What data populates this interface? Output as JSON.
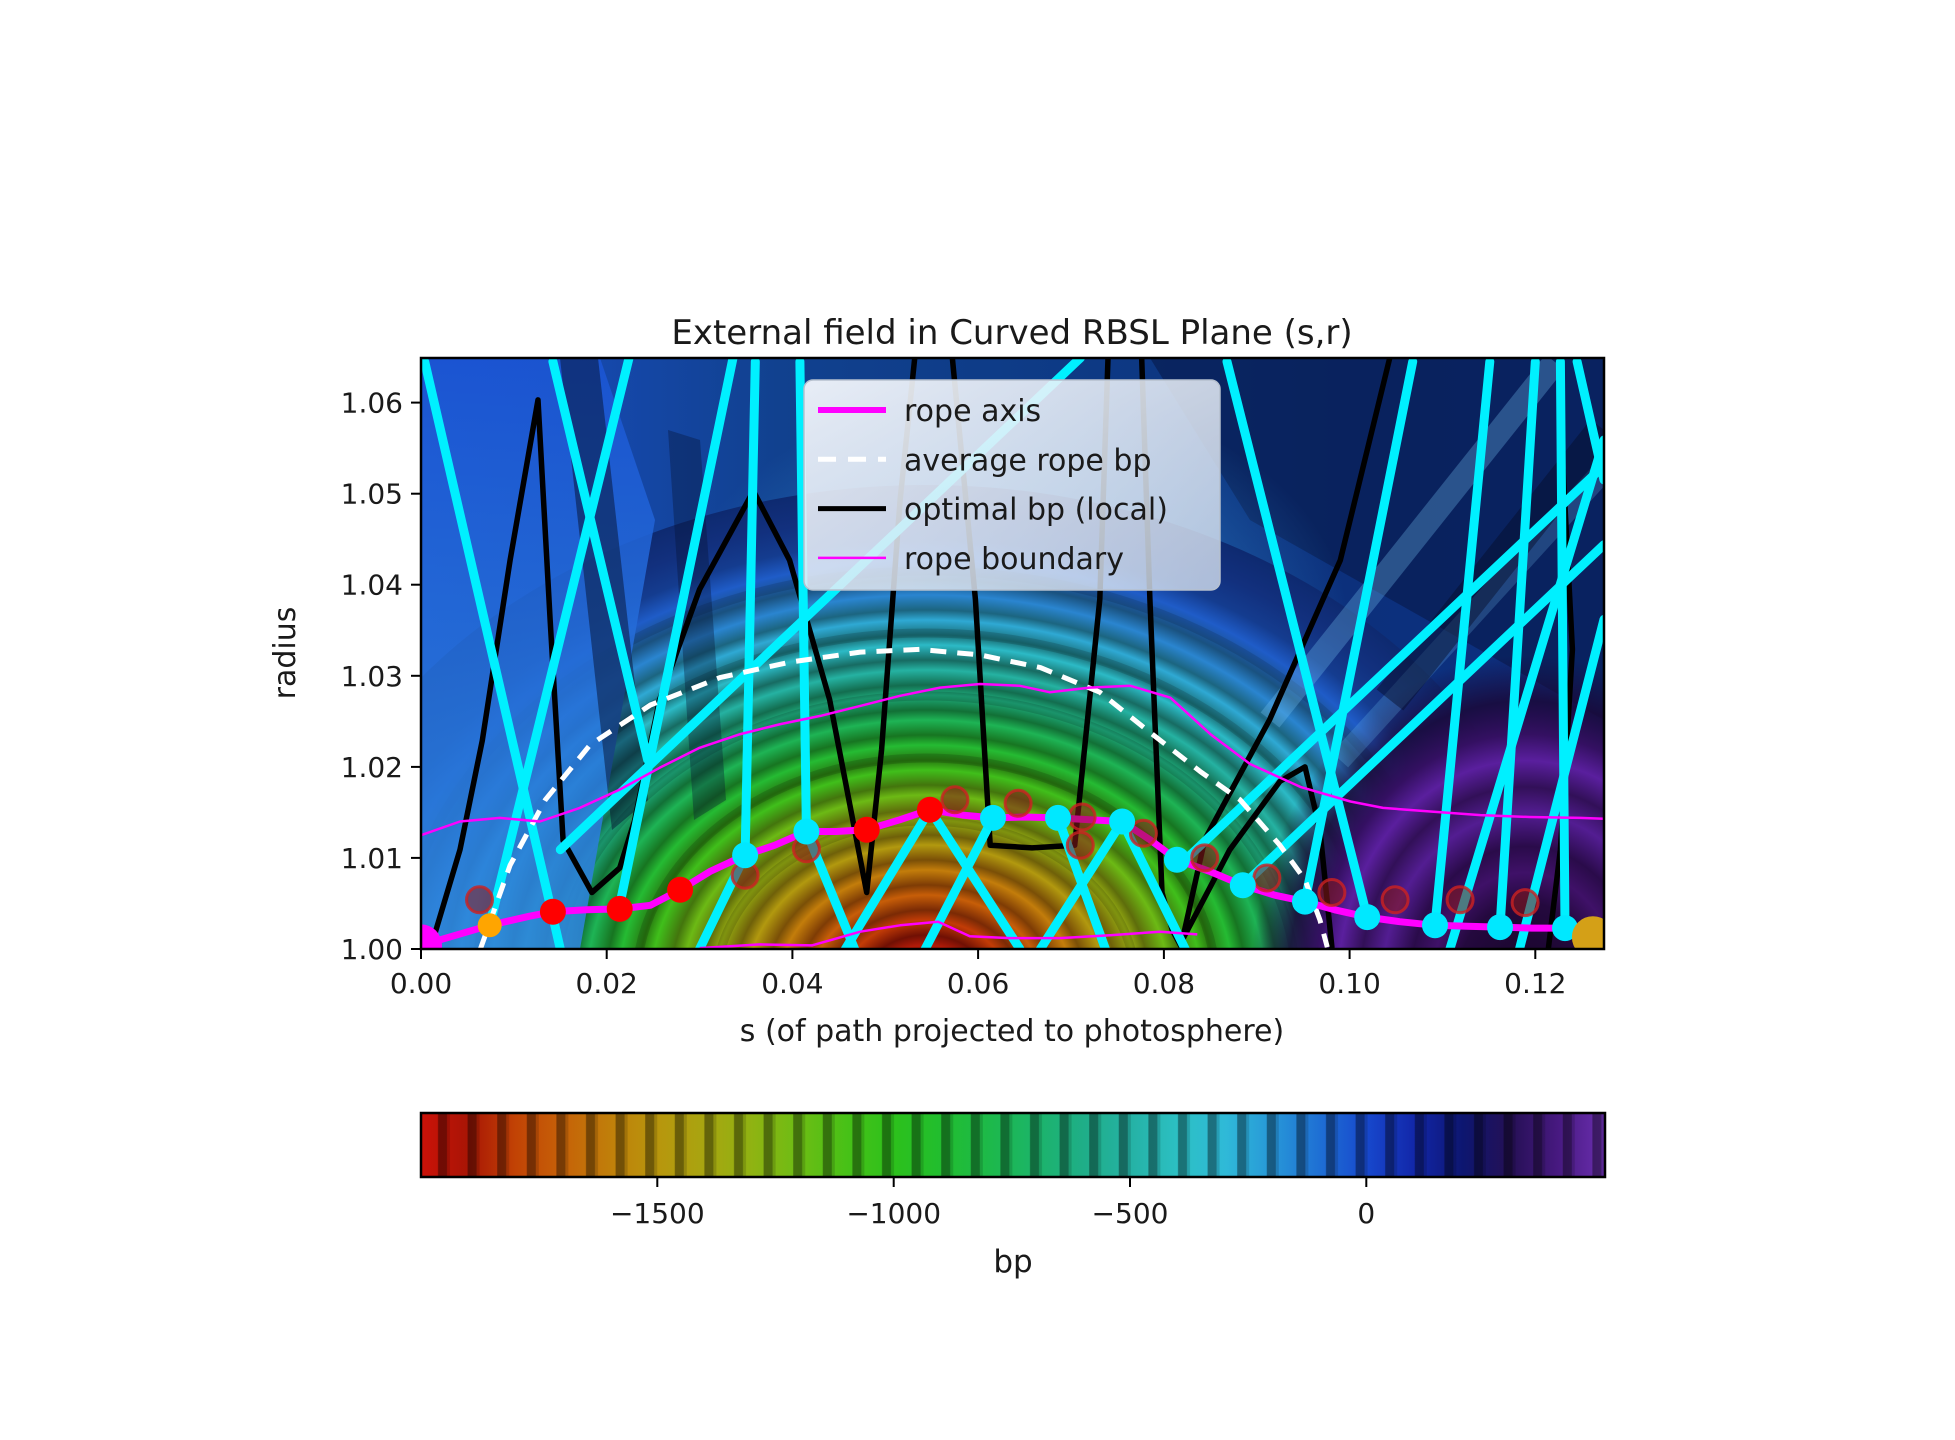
{
  "figure": {
    "background": "#ffffff"
  },
  "chart_data": {
    "type": "heatmap",
    "title": "External field in Curved RBSL Plane (s,r)",
    "xlabel": "s (of path projected to photosphere)",
    "ylabel": "radius",
    "axes": {
      "xlim": [
        0.0,
        0.1274
      ],
      "ylim": [
        1.0,
        1.0649
      ],
      "x_ticks": [
        {
          "value": 0.0,
          "label": "0.00"
        },
        {
          "value": 0.02,
          "label": "0.02"
        },
        {
          "value": 0.04,
          "label": "0.04"
        },
        {
          "value": 0.06,
          "label": "0.06"
        },
        {
          "value": 0.08,
          "label": "0.08"
        },
        {
          "value": 0.1,
          "label": "0.10"
        },
        {
          "value": 0.12,
          "label": "0.12"
        }
      ],
      "y_ticks": [
        {
          "value": 1.0,
          "label": "1.00"
        },
        {
          "value": 1.01,
          "label": "1.01"
        },
        {
          "value": 1.02,
          "label": "1.02"
        },
        {
          "value": 1.03,
          "label": "1.03"
        },
        {
          "value": 1.04,
          "label": "1.04"
        },
        {
          "value": 1.05,
          "label": "1.05"
        },
        {
          "value": 1.06,
          "label": "1.06"
        }
      ],
      "grid": false
    },
    "colorbar": {
      "label": "bp",
      "vmin": -2000,
      "vmax": 505,
      "ticks": [
        {
          "value": -1500,
          "label": "−1500"
        },
        {
          "value": -1000,
          "label": "−1000"
        },
        {
          "value": -500,
          "label": "−500"
        },
        {
          "value": 0,
          "label": "0"
        }
      ]
    },
    "legend": {
      "position": "upper center-left inside axes",
      "entries": [
        {
          "label": "rope axis",
          "color": "#ff00ff",
          "width": 6,
          "dash": ""
        },
        {
          "label": "average rope bp",
          "color": "#ffffff",
          "width": 5,
          "dash": "18 12"
        },
        {
          "label": "optimal bp (local)",
          "color": "#000000",
          "width": 5,
          "dash": ""
        },
        {
          "label": "rope boundary",
          "color": "#ff00ff",
          "width": 2.5,
          "dash": ""
        }
      ]
    },
    "styles": {
      "field_line_color": "#00f0ff",
      "rope_axis_color": "#ff00ff",
      "optimal_color": "#000000",
      "average_color": "#ffffff",
      "boundary_color": "#ff00ff",
      "faded_fill": "#8b1a1a",
      "faded_ring": "#cc2222"
    },
    "rope_axis": {
      "points": [
        [
          0.0,
          1.0004
        ],
        [
          0.0074,
          1.0026
        ],
        [
          0.0117,
          1.0036
        ],
        [
          0.0142,
          1.0041
        ],
        [
          0.0178,
          1.0043
        ],
        [
          0.0214,
          1.0044
        ],
        [
          0.0247,
          1.0048
        ],
        [
          0.0279,
          1.0065
        ],
        [
          0.0311,
          1.0085
        ],
        [
          0.0349,
          1.0103
        ],
        [
          0.0381,
          1.0114
        ],
        [
          0.0415,
          1.0129
        ],
        [
          0.0447,
          1.0129
        ],
        [
          0.048,
          1.0131
        ],
        [
          0.0516,
          1.0142
        ],
        [
          0.0548,
          1.0153
        ],
        [
          0.0583,
          1.0147
        ],
        [
          0.0616,
          1.0144
        ],
        [
          0.065,
          1.0145
        ],
        [
          0.0686,
          1.0144
        ],
        [
          0.072,
          1.0142
        ],
        [
          0.0755,
          1.014
        ],
        [
          0.0785,
          1.012
        ],
        [
          0.0814,
          1.0098
        ],
        [
          0.085,
          1.0085
        ],
        [
          0.0885,
          1.007
        ],
        [
          0.092,
          1.0059
        ],
        [
          0.0952,
          1.0052
        ],
        [
          0.0984,
          1.0043
        ],
        [
          0.1019,
          1.0035
        ],
        [
          0.1054,
          1.003
        ],
        [
          0.1092,
          1.0026
        ],
        [
          0.1126,
          1.0025
        ],
        [
          0.1162,
          1.0024
        ],
        [
          0.1196,
          1.0023
        ],
        [
          0.1232,
          1.0023
        ],
        [
          0.1262,
          1.0013
        ],
        [
          0.1274,
          1.0009
        ]
      ]
    },
    "rope_axis_markers": [
      {
        "s": 0.0,
        "r": 1.0004,
        "color": "#ff00ff",
        "size": 21
      },
      {
        "s": 0.0074,
        "r": 1.0026,
        "color": "#ffa500",
        "size": 12
      },
      {
        "s": 0.0142,
        "r": 1.0041,
        "color": "#ff0000",
        "size": 13
      },
      {
        "s": 0.0214,
        "r": 1.0044,
        "color": "#ff0000",
        "size": 13
      },
      {
        "s": 0.0279,
        "r": 1.0065,
        "color": "#ff0000",
        "size": 13
      },
      {
        "s": 0.0349,
        "r": 1.0103,
        "color": "#00e8ff",
        "size": 13
      },
      {
        "s": 0.0415,
        "r": 1.0129,
        "color": "#00e8ff",
        "size": 13
      },
      {
        "s": 0.048,
        "r": 1.0131,
        "color": "#ff0000",
        "size": 13
      },
      {
        "s": 0.0548,
        "r": 1.0153,
        "color": "#ff0000",
        "size": 13
      },
      {
        "s": 0.0616,
        "r": 1.0144,
        "color": "#00e8ff",
        "size": 13
      },
      {
        "s": 0.0686,
        "r": 1.0144,
        "color": "#00e8ff",
        "size": 13
      },
      {
        "s": 0.0755,
        "r": 1.014,
        "color": "#00e8ff",
        "size": 13
      },
      {
        "s": 0.0814,
        "r": 1.0098,
        "color": "#00e8ff",
        "size": 13
      },
      {
        "s": 0.0885,
        "r": 1.007,
        "color": "#00e8ff",
        "size": 13
      },
      {
        "s": 0.0952,
        "r": 1.0052,
        "color": "#00e8ff",
        "size": 13
      },
      {
        "s": 0.1019,
        "r": 1.0035,
        "color": "#00e8ff",
        "size": 13
      },
      {
        "s": 0.1092,
        "r": 1.0026,
        "color": "#00e8ff",
        "size": 13
      },
      {
        "s": 0.1162,
        "r": 1.0024,
        "color": "#00e8ff",
        "size": 13
      },
      {
        "s": 0.1232,
        "r": 1.0023,
        "color": "#00e8ff",
        "size": 13
      },
      {
        "s": 0.1262,
        "r": 1.0013,
        "color": "#d4a017",
        "size": 21
      }
    ],
    "faded_markers": [
      [
        0.0063,
        1.0054
      ],
      [
        0.0349,
        1.0081
      ],
      [
        0.0415,
        1.011
      ],
      [
        0.0575,
        1.0164
      ],
      [
        0.0643,
        1.016
      ],
      [
        0.0712,
        1.0145
      ],
      [
        0.071,
        1.0114
      ],
      [
        0.0778,
        1.0127
      ],
      [
        0.0844,
        1.01
      ],
      [
        0.0911,
        1.0078
      ],
      [
        0.0981,
        1.0062
      ],
      [
        0.1049,
        1.0054
      ],
      [
        0.1119,
        1.0054
      ],
      [
        0.1189,
        1.0051
      ]
    ],
    "field_lines": [
      [
        [
          0.0004,
          1.0645
        ],
        [
          0.015,
          1.0
        ]
      ],
      [
        [
          0.0224,
          1.0649
        ],
        [
          0.0074,
          1.0026
        ]
      ],
      [
        [
          0.0142,
          1.0645
        ],
        [
          0.0244,
          1.0208
        ]
      ],
      [
        [
          0.0336,
          1.0649
        ],
        [
          0.0214,
          1.0048
        ]
      ],
      [
        [
          0.015,
          1.0109
        ],
        [
          0.071,
          1.0649
        ]
      ],
      [
        [
          0.0349,
          1.0103
        ],
        [
          0.03,
          1.0
        ]
      ],
      [
        [
          0.0415,
          1.0129
        ],
        [
          0.0467,
          1.0
        ]
      ],
      [
        [
          0.0548,
          1.0153
        ],
        [
          0.0457,
          1.0
        ]
      ],
      [
        [
          0.0548,
          1.0153
        ],
        [
          0.0645,
          1.0
        ]
      ],
      [
        [
          0.0616,
          1.0144
        ],
        [
          0.0543,
          1.0
        ]
      ],
      [
        [
          0.0686,
          1.0144
        ],
        [
          0.0737,
          1.0
        ]
      ],
      [
        [
          0.0755,
          1.014
        ],
        [
          0.0667,
          1.0
        ]
      ],
      [
        [
          0.0755,
          1.014
        ],
        [
          0.0823,
          1.0
        ]
      ],
      [
        [
          0.036,
          1.0645
        ],
        [
          0.0349,
          1.0103
        ]
      ],
      [
        [
          0.0408,
          1.0645
        ],
        [
          0.0415,
          1.0129
        ]
      ],
      [
        [
          0.0868,
          1.0645
        ],
        [
          0.1019,
          1.0035
        ]
      ],
      [
        [
          0.1068,
          1.0645
        ],
        [
          0.0952,
          1.0052
        ]
      ],
      [
        [
          0.1151,
          1.0645
        ],
        [
          0.1092,
          1.0026
        ]
      ],
      [
        [
          0.12,
          1.0645
        ],
        [
          0.1162,
          1.0024
        ]
      ],
      [
        [
          0.1227,
          1.0645
        ],
        [
          0.1232,
          1.0023
        ]
      ],
      [
        [
          0.1245,
          1.0645
        ],
        [
          0.1274,
          1.0515
        ]
      ],
      [
        [
          0.1274,
          1.0559
        ],
        [
          0.1108,
          1.0
        ]
      ],
      [
        [
          0.1274,
          1.0362
        ],
        [
          0.1183,
          1.0
        ]
      ],
      [
        [
          0.082,
          1.0095
        ],
        [
          0.1274,
          1.0531
        ]
      ],
      [
        [
          0.0885,
          1.007
        ],
        [
          0.1274,
          1.0444
        ]
      ]
    ],
    "optimal_bp_curves": [
      [
        [
          0.001,
          1.0
        ],
        [
          0.0042,
          1.0109
        ],
        [
          0.0066,
          1.0229
        ],
        [
          0.0096,
          1.0427
        ],
        [
          0.0126,
          1.0603
        ],
        [
          0.0139,
          1.0362
        ],
        [
          0.0153,
          1.0119
        ],
        [
          0.0184,
          1.0062
        ],
        [
          0.0214,
          1.0089
        ],
        [
          0.023,
          1.0141
        ],
        [
          0.0257,
          1.0274
        ],
        [
          0.03,
          1.0395
        ],
        [
          0.0358,
          1.0503
        ],
        [
          0.0397,
          1.0427
        ],
        [
          0.044,
          1.0274
        ],
        [
          0.048,
          1.0062
        ],
        [
          0.0496,
          1.0219
        ],
        [
          0.0516,
          1.0493
        ],
        [
          0.0532,
          1.0652
        ]
      ],
      [
        [
          0.0572,
          1.0652
        ],
        [
          0.0597,
          1.0384
        ],
        [
          0.0613,
          1.0114
        ],
        [
          0.0658,
          1.0111
        ],
        [
          0.0704,
          1.0114
        ],
        [
          0.0731,
          1.0384
        ],
        [
          0.074,
          1.0652
        ]
      ],
      [
        [
          0.0776,
          1.0652
        ],
        [
          0.0785,
          1.0384
        ],
        [
          0.0798,
          1.0062
        ],
        [
          0.0809,
          1.0021
        ],
        [
          0.082,
          1.0
        ]
      ],
      [
        [
          0.1044,
          1.0652
        ],
        [
          0.099,
          1.0427
        ],
        [
          0.0914,
          1.0252
        ],
        [
          0.0844,
          1.012
        ],
        [
          0.082,
          1.001
        ],
        [
          0.0871,
          1.0109
        ],
        [
          0.0925,
          1.0184
        ],
        [
          0.0952,
          1.02
        ],
        [
          0.0968,
          1.0131
        ],
        [
          0.0981,
          1.0002
        ]
      ],
      [
        [
          0.123,
          1.0526
        ],
        [
          0.124,
          1.0329
        ],
        [
          0.1227,
          1.0109
        ],
        [
          0.1214,
          1.0
        ]
      ]
    ],
    "average_rope_bp": [
      [
        0.0064,
        1.0
      ],
      [
        0.0096,
        1.0092
      ],
      [
        0.0134,
        1.0164
      ],
      [
        0.0182,
        1.0224
      ],
      [
        0.0247,
        1.0268
      ],
      [
        0.0322,
        1.0298
      ],
      [
        0.0397,
        1.0315
      ],
      [
        0.0473,
        1.0326
      ],
      [
        0.0537,
        1.0329
      ],
      [
        0.0602,
        1.0323
      ],
      [
        0.0667,
        1.0309
      ],
      [
        0.0731,
        1.0282
      ],
      [
        0.0785,
        1.0238
      ],
      [
        0.0839,
        1.0195
      ],
      [
        0.0882,
        1.0164
      ],
      [
        0.0925,
        1.0114
      ],
      [
        0.0952,
        1.0076
      ],
      [
        0.0968,
        1.0032
      ],
      [
        0.0976,
        1.0002
      ]
    ],
    "rope_boundary_upper": [
      [
        0.0,
        1.0125
      ],
      [
        0.0042,
        1.014
      ],
      [
        0.0085,
        1.0144
      ],
      [
        0.0128,
        1.014
      ],
      [
        0.0171,
        1.0155
      ],
      [
        0.0214,
        1.0175
      ],
      [
        0.0257,
        1.0199
      ],
      [
        0.03,
        1.0221
      ],
      [
        0.0344,
        1.0236
      ],
      [
        0.0387,
        1.0247
      ],
      [
        0.043,
        1.0256
      ],
      [
        0.0473,
        1.0267
      ],
      [
        0.0516,
        1.0278
      ],
      [
        0.0559,
        1.0287
      ],
      [
        0.0602,
        1.0291
      ],
      [
        0.0645,
        1.0289
      ],
      [
        0.0677,
        1.0282
      ],
      [
        0.072,
        1.0287
      ],
      [
        0.0764,
        1.0289
      ],
      [
        0.0807,
        1.0276
      ],
      [
        0.085,
        1.0236
      ],
      [
        0.0893,
        1.0203
      ],
      [
        0.0947,
        1.0178
      ],
      [
        0.1001,
        1.0162
      ],
      [
        0.1036,
        1.0155
      ],
      [
        0.1087,
        1.0151
      ],
      [
        0.1141,
        1.0147
      ],
      [
        0.1194,
        1.0145
      ],
      [
        0.1248,
        1.0144
      ],
      [
        0.1274,
        1.0143
      ]
    ],
    "rope_boundary_lower": [
      [
        0.03,
        1.0001
      ],
      [
        0.0365,
        1.0005
      ],
      [
        0.0421,
        1.0004
      ],
      [
        0.0473,
        1.0019
      ],
      [
        0.0516,
        1.0026
      ],
      [
        0.0557,
        1.003
      ],
      [
        0.0591,
        1.0014
      ],
      [
        0.0634,
        1.0012
      ],
      [
        0.0688,
        1.0012
      ],
      [
        0.0742,
        1.0015
      ],
      [
        0.0796,
        1.0019
      ],
      [
        0.0836,
        1.0016
      ]
    ]
  }
}
